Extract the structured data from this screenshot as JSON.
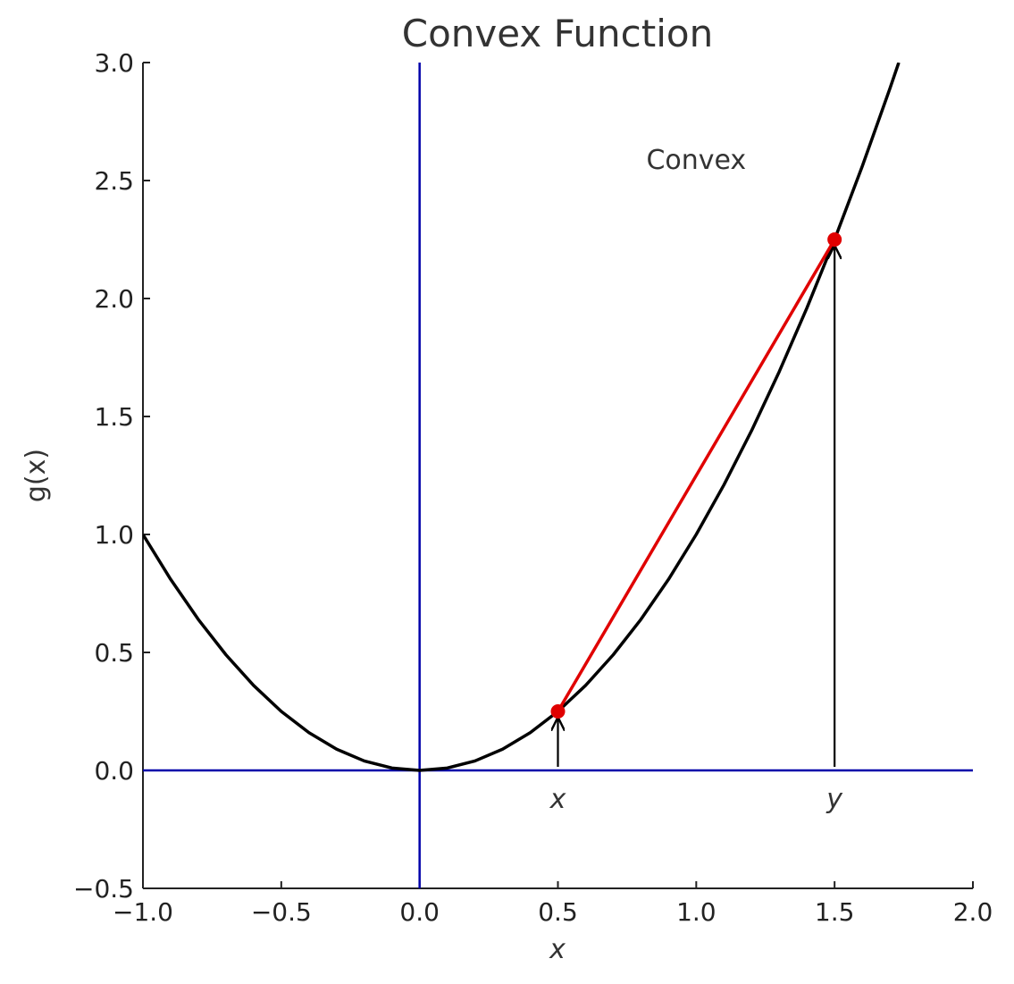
{
  "chart_data": {
    "type": "line",
    "title": "Convex Function",
    "xlabel": "x",
    "ylabel": "g(x)",
    "xlim": [
      -1.0,
      2.0
    ],
    "ylim": [
      -0.5,
      3.0
    ],
    "xticks": [
      -1.0,
      -0.5,
      0.0,
      0.5,
      1.0,
      1.5,
      2.0
    ],
    "yticks": [
      -0.5,
      0.0,
      0.5,
      1.0,
      1.5,
      2.0,
      2.5,
      3.0
    ],
    "grid": false,
    "curve": {
      "function": "x^2",
      "color": "#000000",
      "x": [
        -1.0,
        -0.9,
        -0.8,
        -0.7,
        -0.6,
        -0.5,
        -0.4,
        -0.3,
        -0.2,
        -0.1,
        0.0,
        0.1,
        0.2,
        0.3,
        0.4,
        0.5,
        0.6,
        0.7,
        0.8,
        0.9,
        1.0,
        1.1,
        1.2,
        1.3,
        1.4,
        1.5,
        1.6,
        1.7,
        1.732
      ],
      "y": [
        1.0,
        0.81,
        0.64,
        0.49,
        0.36,
        0.25,
        0.16,
        0.09,
        0.04,
        0.01,
        0.0,
        0.01,
        0.04,
        0.09,
        0.16,
        0.25,
        0.36,
        0.49,
        0.64,
        0.81,
        1.0,
        1.21,
        1.44,
        1.69,
        1.96,
        2.25,
        2.56,
        2.89,
        3.0
      ]
    },
    "chord": {
      "color": "#e00000",
      "points": [
        {
          "x": 0.5,
          "y": 0.25
        },
        {
          "x": 1.5,
          "y": 2.25
        }
      ]
    },
    "reference_lines": {
      "color": "#0000aa",
      "horizontal_y": 0.0,
      "vertical_x": 0.0
    },
    "arrows": [
      {
        "x": 0.5,
        "from_y": 0.0,
        "to_y": 0.25
      },
      {
        "x": 1.5,
        "from_y": 0.0,
        "to_y": 2.25
      }
    ],
    "annotations": [
      {
        "text": "Convex",
        "x": 1.0,
        "y": 2.55
      },
      {
        "text": "x",
        "x": 0.5,
        "y": -0.16,
        "italic": true
      },
      {
        "text": "y",
        "x": 1.5,
        "y": -0.16,
        "italic": true
      }
    ]
  }
}
